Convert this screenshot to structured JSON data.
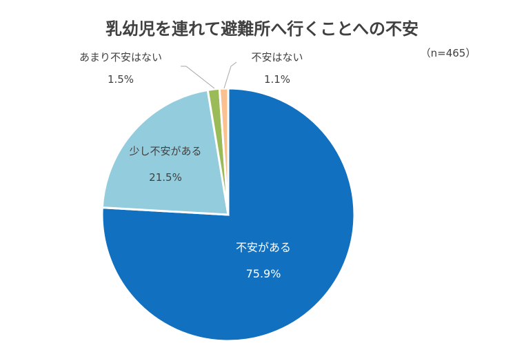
{
  "chart_data": {
    "type": "pie",
    "title": "乳幼児を連れて避難所へ行くことへの不安",
    "subtitle": "（n=465）",
    "slices": [
      {
        "label": "不安がある",
        "value": 75.9,
        "value_label": "75.9%",
        "color": "#1170BF"
      },
      {
        "label": "少し不安がある",
        "value": 21.5,
        "value_label": "21.5%",
        "color": "#93CDDD"
      },
      {
        "label": "あまり不安はない",
        "value": 1.5,
        "value_label": "1.5%",
        "color": "#9BBB59"
      },
      {
        "label": "不安はない",
        "value": 1.1,
        "value_label": "1.1%",
        "color": "#FAC090"
      }
    ]
  }
}
